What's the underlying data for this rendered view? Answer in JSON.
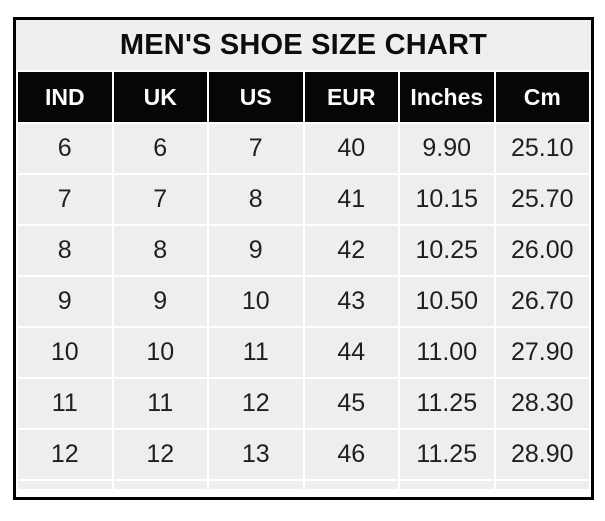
{
  "title": "MEN'S SHOE SIZE CHART",
  "colors": {
    "border": "#000000",
    "title_bg": "#efefef",
    "header_bg": "#060606",
    "header_text": "#fcfcfc",
    "cell_bg": "#eeeeee",
    "cell_text": "#1f1f1f",
    "gutter": "#ffffff"
  },
  "chart_data": {
    "type": "table",
    "title": "MEN'S SHOE SIZE CHART",
    "columns": [
      "IND",
      "UK",
      "US",
      "EUR",
      "Inches",
      "Cm"
    ],
    "rows": [
      [
        "6",
        "6",
        "7",
        "40",
        "9.90",
        "25.10"
      ],
      [
        "7",
        "7",
        "8",
        "41",
        "10.15",
        "25.70"
      ],
      [
        "8",
        "8",
        "9",
        "42",
        "10.25",
        "26.00"
      ],
      [
        "9",
        "9",
        "10",
        "43",
        "10.50",
        "26.70"
      ],
      [
        "10",
        "10",
        "11",
        "44",
        "11.00",
        "27.90"
      ],
      [
        "11",
        "11",
        "12",
        "45",
        "11.25",
        "28.30"
      ],
      [
        "12",
        "12",
        "13",
        "46",
        "11.25",
        "28.90"
      ]
    ]
  }
}
